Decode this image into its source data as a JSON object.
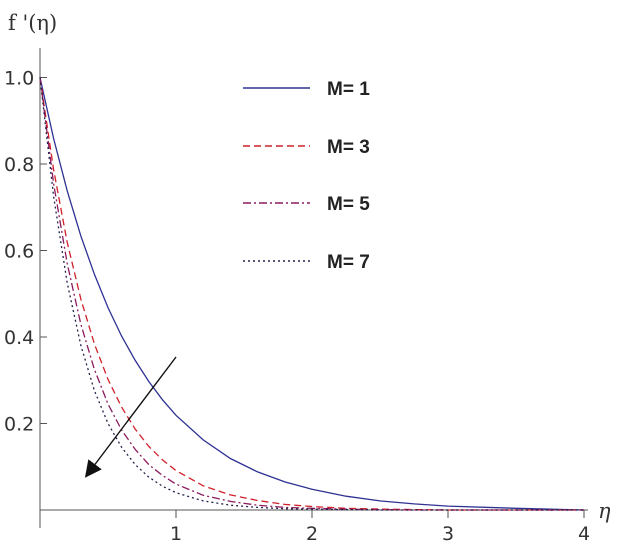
{
  "chart_data": {
    "type": "line",
    "xlabel": "η",
    "ylabel": "f '(η)",
    "xlim": [
      0,
      4
    ],
    "ylim": [
      0,
      1.05
    ],
    "x_ticks": [
      "1",
      "2",
      "3",
      "4"
    ],
    "y_ticks": [
      "0.2",
      "0.4",
      "0.6",
      "0.8",
      "1.0"
    ],
    "grid": false,
    "legend_position": "top-center",
    "x": [
      0,
      0.1,
      0.2,
      0.3,
      0.4,
      0.5,
      0.6,
      0.7,
      0.8,
      0.9,
      1.0,
      1.2,
      1.4,
      1.6,
      1.8,
      2.0,
      2.25,
      2.5,
      2.75,
      3.0,
      3.5,
      4.0
    ],
    "series": [
      {
        "name": "M= 1",
        "color": "#2e3192",
        "dash": "solid",
        "values": [
          1.0,
          0.859,
          0.738,
          0.634,
          0.545,
          0.468,
          0.402,
          0.346,
          0.297,
          0.255,
          0.219,
          0.162,
          0.119,
          0.088,
          0.065,
          0.048,
          0.032,
          0.021,
          0.014,
          0.009,
          0.004,
          0.0
        ]
      },
      {
        "name": "M= 3",
        "color": "#d0202a",
        "dash": "7,4",
        "values": [
          1.0,
          0.787,
          0.619,
          0.488,
          0.384,
          0.302,
          0.238,
          0.187,
          0.147,
          0.116,
          0.091,
          0.056,
          0.035,
          0.022,
          0.013,
          0.008,
          0.004,
          0.002,
          0.001,
          0.0,
          0.0,
          0.0
        ]
      },
      {
        "name": "M= 5",
        "color": "#8b1a5c",
        "dash": "8,3,2,3",
        "values": [
          1.0,
          0.755,
          0.57,
          0.43,
          0.325,
          0.245,
          0.185,
          0.14,
          0.105,
          0.08,
          0.06,
          0.034,
          0.02,
          0.011,
          0.006,
          0.004,
          0.002,
          0.001,
          0.0,
          0.0,
          0.0,
          0.0
        ]
      },
      {
        "name": "M= 7",
        "color": "#23214a",
        "dash": "2,3",
        "values": [
          1.0,
          0.725,
          0.525,
          0.381,
          0.276,
          0.2,
          0.145,
          0.105,
          0.076,
          0.055,
          0.04,
          0.021,
          0.011,
          0.006,
          0.003,
          0.002,
          0.001,
          0.0,
          0.0,
          0.0,
          0.0,
          0.0
        ]
      }
    ]
  }
}
